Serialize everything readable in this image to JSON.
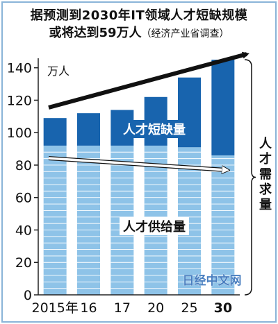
{
  "title_line1": "据预测到2030年IT领域人才短缺规模",
  "title_line2_main": "或将达到59万人",
  "title_line2_note": "（经济产业省调查）",
  "watermark": "日经中文网",
  "colors": {
    "supply": "#8ec3e8",
    "supply_line": "#ffffff",
    "shortage": "#1864ae",
    "frame": "#8ab4d8",
    "label_bg": "#1864ae",
    "watermark": "#4a7fc0"
  },
  "chart_data": {
    "type": "bar",
    "stacked": true,
    "unit_label": "万人",
    "categories": [
      "2015年",
      "16",
      "17",
      "20",
      "25",
      "30"
    ],
    "ylim": [
      0,
      145
    ],
    "yticks": [
      0,
      20,
      40,
      60,
      80,
      100,
      120,
      140
    ],
    "series": [
      {
        "name": "人才供给量",
        "values": [
          92,
          92,
          92,
          92,
          91,
          86
        ]
      },
      {
        "name": "人才短缺量",
        "values": [
          17,
          20,
          22,
          30,
          43,
          59
        ]
      }
    ],
    "bracket_label": "人才需求量",
    "annotations": [
      "人才短缺量",
      "人才供给量"
    ]
  }
}
